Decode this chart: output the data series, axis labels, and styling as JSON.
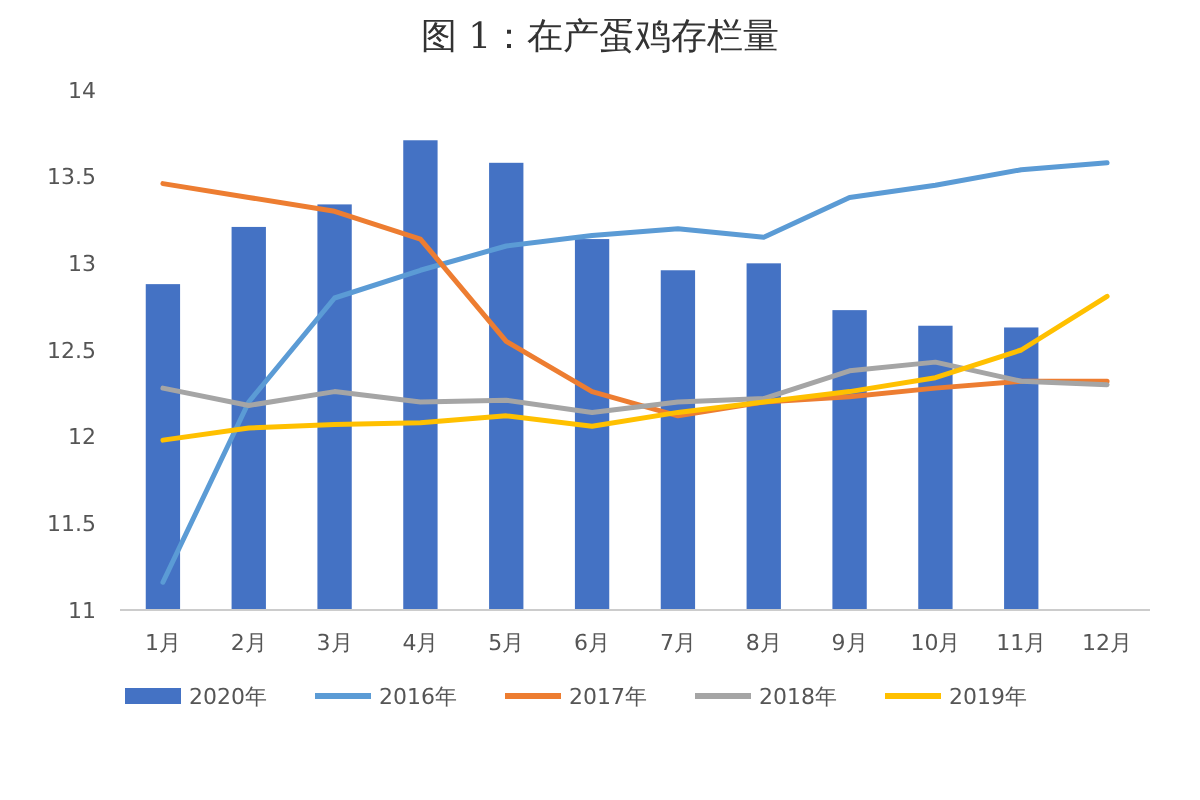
{
  "chart_data": {
    "type": "bar",
    "title": "图 1：在产蛋鸡存栏量",
    "categories": [
      "1月",
      "2月",
      "3月",
      "4月",
      "5月",
      "6月",
      "7月",
      "8月",
      "9月",
      "10月",
      "11月",
      "12月"
    ],
    "series": [
      {
        "name": "2020年",
        "color": "#4472c4",
        "values": [
          12.88,
          13.21,
          13.34,
          13.71,
          13.58,
          13.14,
          12.96,
          13.0,
          12.73,
          12.64,
          12.63,
          null
        ]
      },
      {
        "name": "2016年",
        "type": "line",
        "color": "#5b9bd5",
        "values": [
          11.16,
          12.2,
          12.8,
          12.96,
          13.1,
          13.16,
          13.2,
          13.15,
          13.38,
          13.45,
          13.54,
          13.58
        ]
      },
      {
        "name": "2017年",
        "type": "line",
        "color": "#ed7d31",
        "values": [
          13.46,
          13.38,
          13.3,
          13.14,
          12.55,
          12.26,
          12.12,
          12.2,
          12.23,
          12.28,
          12.32,
          12.32
        ]
      },
      {
        "name": "2018年",
        "type": "line",
        "color": "#a5a5a5",
        "values": [
          12.28,
          12.18,
          12.26,
          12.2,
          12.21,
          12.14,
          12.2,
          12.22,
          12.38,
          12.43,
          12.32,
          12.3
        ]
      },
      {
        "name": "2019年",
        "type": "line",
        "color": "#ffc000",
        "values": [
          11.98,
          12.05,
          12.07,
          12.08,
          12.12,
          12.06,
          12.14,
          12.2,
          12.26,
          12.34,
          12.5,
          12.81
        ]
      }
    ],
    "ylim": [
      11,
      14
    ],
    "yticks": [
      11,
      11.5,
      12,
      12.5,
      13,
      13.5,
      14
    ],
    "legend": "bottom",
    "grid": false
  }
}
